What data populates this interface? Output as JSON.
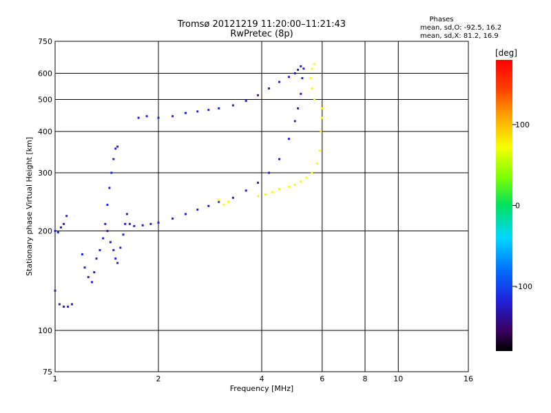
{
  "chart_data": {
    "type": "scatter",
    "title": "Tromsø 20121219 11:20:00–11:21:43",
    "subtitle": "RwPretec (8p)",
    "xlabel": "Frequency [MHz]",
    "ylabel": "Stationary phase Virtual Height [km]",
    "x_scale": "log",
    "y_scale": "log",
    "xlim": [
      1,
      16
    ],
    "ylim": [
      75,
      750
    ],
    "x_ticks": [
      1,
      2,
      4,
      6,
      8,
      10,
      16
    ],
    "y_ticks": [
      75,
      100,
      200,
      300,
      400,
      500,
      600,
      750
    ],
    "grid": true,
    "phase_stats": {
      "header": "Phases",
      "line_o": "mean, sd,O: -92.5, 16.2",
      "line_x": "mean, sd,X:  81.2, 16.9"
    },
    "colorbar": {
      "label": "[deg]",
      "ticks": [
        100,
        0,
        -100
      ],
      "range": [
        -180,
        180
      ]
    },
    "series": [
      {
        "mode": "O",
        "color_phase": -95,
        "points": [
          [
            1.0,
            200
          ],
          [
            1.02,
            198
          ],
          [
            1.04,
            205
          ],
          [
            1.06,
            210
          ],
          [
            1.08,
            222
          ],
          [
            1.0,
            132
          ],
          [
            1.03,
            120
          ],
          [
            1.06,
            118
          ],
          [
            1.09,
            118
          ],
          [
            1.12,
            120
          ],
          [
            1.2,
            170
          ],
          [
            1.22,
            155
          ],
          [
            1.25,
            145
          ],
          [
            1.28,
            140
          ],
          [
            1.3,
            150
          ],
          [
            1.32,
            165
          ],
          [
            1.35,
            175
          ],
          [
            1.38,
            190
          ],
          [
            1.4,
            210
          ],
          [
            1.42,
            240
          ],
          [
            1.44,
            270
          ],
          [
            1.46,
            300
          ],
          [
            1.48,
            330
          ],
          [
            1.5,
            355
          ],
          [
            1.52,
            360
          ],
          [
            1.42,
            200
          ],
          [
            1.45,
            185
          ],
          [
            1.48,
            175
          ],
          [
            1.5,
            165
          ],
          [
            1.52,
            160
          ],
          [
            1.55,
            178
          ],
          [
            1.58,
            195
          ],
          [
            1.6,
            210
          ],
          [
            1.62,
            225
          ],
          [
            1.65,
            210
          ],
          [
            1.7,
            207
          ],
          [
            1.8,
            208
          ],
          [
            1.9,
            210
          ],
          [
            2.0,
            212
          ],
          [
            2.2,
            218
          ],
          [
            2.4,
            225
          ],
          [
            2.6,
            232
          ],
          [
            2.8,
            238
          ],
          [
            3.0,
            245
          ],
          [
            3.3,
            252
          ],
          [
            3.6,
            265
          ],
          [
            3.9,
            280
          ],
          [
            4.2,
            300
          ],
          [
            4.5,
            330
          ],
          [
            4.8,
            380
          ],
          [
            5.0,
            430
          ],
          [
            5.1,
            470
          ],
          [
            5.2,
            520
          ],
          [
            5.25,
            580
          ],
          [
            5.3,
            620
          ],
          [
            1.75,
            440
          ],
          [
            1.85,
            445
          ],
          [
            2.0,
            440
          ],
          [
            2.2,
            445
          ],
          [
            2.4,
            455
          ],
          [
            2.6,
            460
          ],
          [
            2.8,
            465
          ],
          [
            3.0,
            470
          ],
          [
            3.3,
            480
          ],
          [
            3.6,
            495
          ],
          [
            3.9,
            515
          ],
          [
            4.2,
            540
          ],
          [
            4.5,
            565
          ],
          [
            4.8,
            585
          ],
          [
            5.0,
            600
          ],
          [
            5.1,
            615
          ],
          [
            5.2,
            630
          ]
        ]
      },
      {
        "mode": "X",
        "color_phase": 80,
        "points": [
          [
            3.9,
            255
          ],
          [
            4.1,
            258
          ],
          [
            4.3,
            262
          ],
          [
            4.5,
            268
          ],
          [
            4.8,
            272
          ],
          [
            5.0,
            276
          ],
          [
            5.2,
            282
          ],
          [
            5.4,
            290
          ],
          [
            5.6,
            300
          ],
          [
            5.8,
            320
          ],
          [
            5.9,
            350
          ],
          [
            5.95,
            400
          ],
          [
            5.98,
            440
          ],
          [
            6.0,
            470
          ],
          [
            5.7,
            500
          ],
          [
            5.6,
            540
          ],
          [
            5.55,
            580
          ],
          [
            5.6,
            620
          ],
          [
            5.7,
            640
          ],
          [
            3.2,
            245
          ],
          [
            3.1,
            240
          ],
          [
            3.0,
            248
          ]
        ]
      }
    ]
  }
}
